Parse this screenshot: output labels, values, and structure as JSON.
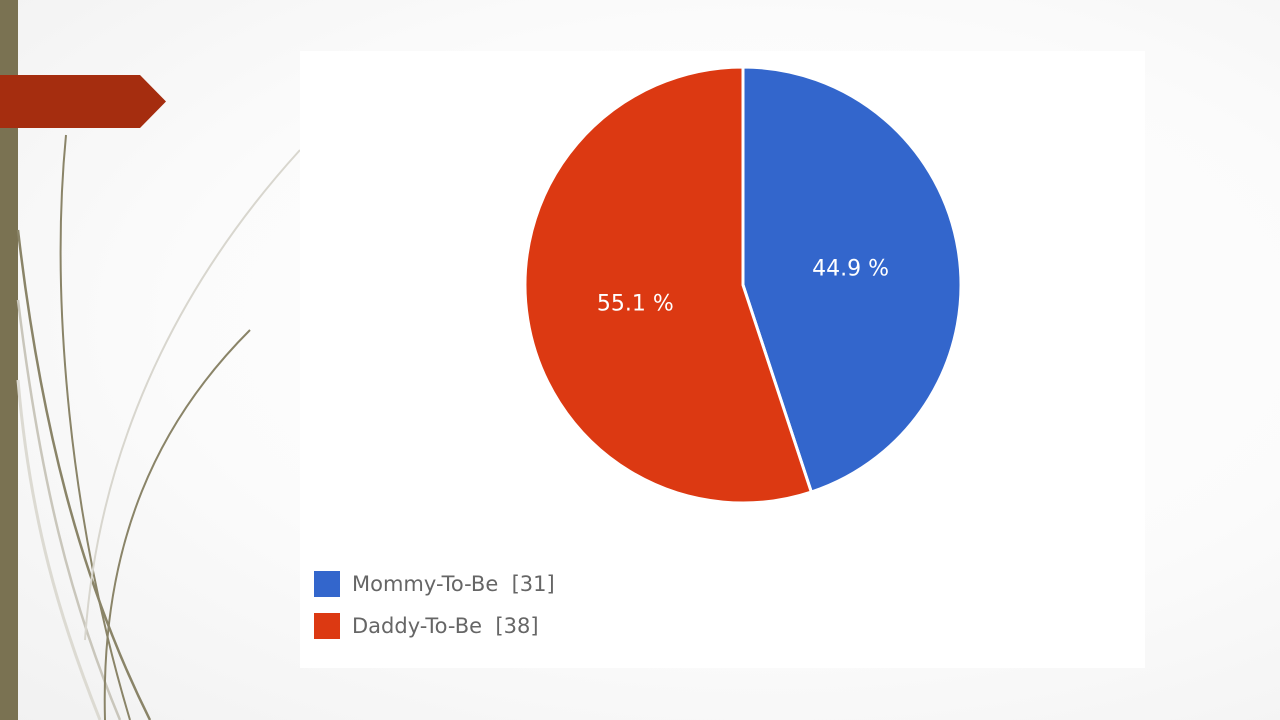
{
  "theme": {
    "sidebar_color": "#7a7252",
    "arrow_color": "#a52d0f"
  },
  "chart_data": {
    "type": "pie",
    "series": [
      {
        "name": "Mommy-To-Be",
        "value": 31,
        "percent": 44.9,
        "label": "44.9 %",
        "legend": "Mommy-To-Be  [31]",
        "color": "#3366cc"
      },
      {
        "name": "Daddy-To-Be",
        "value": 38,
        "percent": 55.1,
        "label": "55.1 %",
        "legend": "Daddy-To-Be  [38]",
        "color": "#dc3912"
      }
    ],
    "legend_position": "bottom-left"
  }
}
